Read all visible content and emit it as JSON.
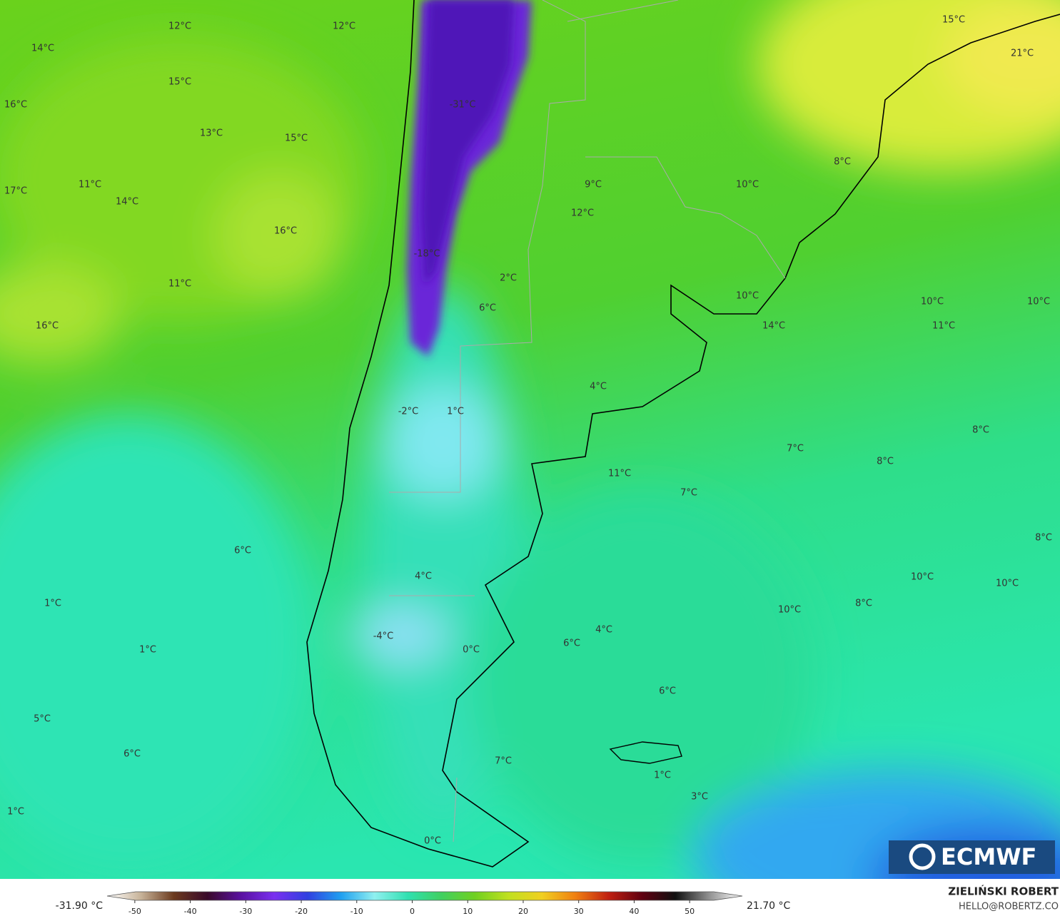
{
  "map": {
    "labels": [
      "12°C",
      "12°C",
      "14°C",
      "15°C",
      "16°C",
      "13°C",
      "15°C",
      "17°C",
      "11°C",
      "14°C",
      "16°C",
      "11°C",
      "16°C",
      "-31°C",
      "-18°C",
      "2°C",
      "6°C",
      "9°C",
      "12°C",
      "15°C",
      "21°C",
      "8°C",
      "10°C",
      "10°C",
      "14°C",
      "10°C",
      "10°C",
      "11°C",
      "4°C",
      "-2°C",
      "1°C",
      "7°C",
      "8°C",
      "8°C",
      "11°C",
      "7°C",
      "8°C",
      "6°C",
      "4°C",
      "10°C",
      "10°C",
      "1°C",
      "10°C",
      "8°C",
      "4°C",
      "-4°C",
      "6°C",
      "0°C",
      "1°C",
      "6°C",
      "5°C",
      "6°C",
      "7°C",
      "1°C",
      "3°C",
      "1°C",
      "0°C"
    ]
  },
  "colorbar": {
    "min_label": "-31.90 °C",
    "max_label": "21.70 °C",
    "lim": [
      -55,
      59.5
    ],
    "ticks": [
      -50,
      -40,
      -30,
      -20,
      -10,
      0,
      10,
      20,
      30,
      40,
      50
    ],
    "colors": [
      "#ffffff",
      "#c8b49a",
      "#6b3a1e",
      "#3a0a2a",
      "#5a10a0",
      "#7a30f0",
      "#3040e0",
      "#20a0f0",
      "#90f0f0",
      "#30e0b0",
      "#40d060",
      "#70d020",
      "#c0e020",
      "#f0d020",
      "#f08010",
      "#c02010",
      "#600010",
      "#101010",
      "#909090",
      "#ffffff"
    ]
  },
  "credits": {
    "author": "ZIELIŃSKI ROBERT",
    "email": "HELLO@ROBERTZ.CO"
  },
  "logo": "ECMWF"
}
